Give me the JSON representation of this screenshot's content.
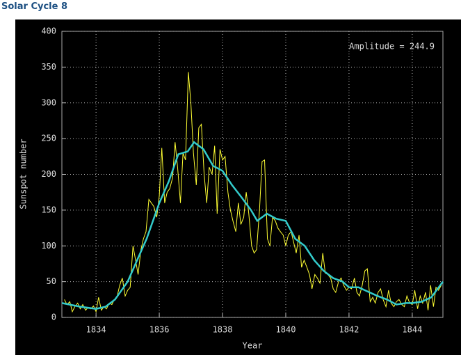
{
  "chart_data": {
    "type": "line",
    "title": "Solar Cycle 8",
    "xlabel": "Year",
    "ylabel": "Sunspot number",
    "annotation": "Amplitude = 244.9",
    "grid": true,
    "xlim": [
      1832.92,
      1844.97
    ],
    "xticks": [
      1834,
      1836,
      1838,
      1840,
      1842,
      1844
    ],
    "ylim": [
      0,
      400
    ],
    "yticks": [
      0,
      50,
      100,
      150,
      200,
      250,
      300,
      350,
      400
    ],
    "series": [
      {
        "color": "#ffff33",
        "x": [
          1833.0,
          1833.08,
          1833.17,
          1833.25,
          1833.33,
          1833.42,
          1833.5,
          1833.58,
          1833.67,
          1833.75,
          1833.83,
          1833.92,
          1834.0,
          1834.08,
          1834.17,
          1834.25,
          1834.33,
          1834.42,
          1834.5,
          1834.58,
          1834.67,
          1834.75,
          1834.83,
          1834.92,
          1835.0,
          1835.08,
          1835.17,
          1835.25,
          1835.33,
          1835.42,
          1835.5,
          1835.58,
          1835.67,
          1835.75,
          1835.83,
          1835.92,
          1836.0,
          1836.08,
          1836.17,
          1836.25,
          1836.33,
          1836.42,
          1836.5,
          1836.58,
          1836.67,
          1836.75,
          1836.83,
          1836.92,
          1837.0,
          1837.08,
          1837.17,
          1837.25,
          1837.33,
          1837.42,
          1837.5,
          1837.58,
          1837.67,
          1837.75,
          1837.83,
          1837.92,
          1838.0,
          1838.08,
          1838.17,
          1838.25,
          1838.33,
          1838.42,
          1838.5,
          1838.58,
          1838.67,
          1838.75,
          1838.83,
          1838.92,
          1839.0,
          1839.08,
          1839.17,
          1839.25,
          1839.33,
          1839.42,
          1839.5,
          1839.58,
          1839.67,
          1839.75,
          1839.83,
          1839.92,
          1840.0,
          1840.08,
          1840.17,
          1840.25,
          1840.33,
          1840.42,
          1840.5,
          1840.58,
          1840.67,
          1840.75,
          1840.83,
          1840.92,
          1841.0,
          1841.08,
          1841.17,
          1841.25,
          1841.33,
          1841.42,
          1841.5,
          1841.58,
          1841.67,
          1841.75,
          1841.83,
          1841.92,
          1842.0,
          1842.08,
          1842.17,
          1842.25,
          1842.33,
          1842.42,
          1842.5,
          1842.58,
          1842.67,
          1842.75,
          1842.83,
          1842.92,
          1843.0,
          1843.08,
          1843.17,
          1843.25,
          1843.33,
          1843.42,
          1843.5,
          1843.58,
          1843.67,
          1843.75,
          1843.83,
          1843.92,
          1844.0,
          1844.08,
          1844.17,
          1844.25,
          1844.33,
          1844.42,
          1844.5,
          1844.58,
          1844.67,
          1844.75,
          1844.83,
          1844.92
        ],
        "values": [
          25,
          18,
          22,
          8,
          15,
          20,
          12,
          18,
          10,
          14,
          12,
          16,
          8,
          28,
          10,
          15,
          12,
          20,
          18,
          25,
          30,
          45,
          55,
          30,
          38,
          42,
          100,
          80,
          60,
          95,
          110,
          120,
          165,
          160,
          155,
          140,
          170,
          237,
          160,
          175,
          180,
          195,
          245,
          210,
          160,
          230,
          220,
          343,
          300,
          230,
          185,
          265,
          270,
          200,
          160,
          210,
          200,
          240,
          145,
          235,
          220,
          225,
          175,
          150,
          135,
          120,
          160,
          130,
          140,
          175,
          145,
          100,
          90,
          95,
          150,
          218,
          220,
          110,
          100,
          140,
          135,
          125,
          120,
          115,
          100,
          115,
          120,
          105,
          90,
          115,
          70,
          80,
          70,
          60,
          40,
          60,
          55,
          48,
          90,
          62,
          60,
          55,
          40,
          35,
          50,
          55,
          45,
          38,
          42,
          40,
          55,
          35,
          30,
          45,
          65,
          68,
          22,
          28,
          20,
          35,
          40,
          25,
          15,
          38,
          20,
          15,
          22,
          25,
          18,
          15,
          30,
          20,
          18,
          38,
          12,
          30,
          20,
          35,
          10,
          45,
          15,
          42,
          38,
          45
        ]
      },
      {
        "color": "#33cccc",
        "x": [
          1832.92,
          1833.5,
          1834.0,
          1834.3,
          1834.6,
          1835.0,
          1835.3,
          1835.6,
          1836.0,
          1836.3,
          1836.6,
          1836.9,
          1837.1,
          1837.4,
          1837.7,
          1838.0,
          1838.3,
          1838.6,
          1838.9,
          1839.1,
          1839.4,
          1839.7,
          1840.0,
          1840.3,
          1840.6,
          1840.9,
          1841.2,
          1841.5,
          1841.8,
          1842.0,
          1842.3,
          1842.6,
          1842.9,
          1843.2,
          1843.5,
          1843.8,
          1844.0,
          1844.3,
          1844.6,
          1844.97
        ],
        "values": [
          20,
          15,
          12,
          15,
          25,
          50,
          80,
          110,
          160,
          190,
          228,
          232,
          245,
          235,
          212,
          205,
          185,
          168,
          150,
          135,
          145,
          138,
          135,
          110,
          100,
          80,
          65,
          55,
          50,
          42,
          42,
          36,
          30,
          25,
          18,
          20,
          20,
          22,
          28,
          50
        ]
      }
    ]
  }
}
